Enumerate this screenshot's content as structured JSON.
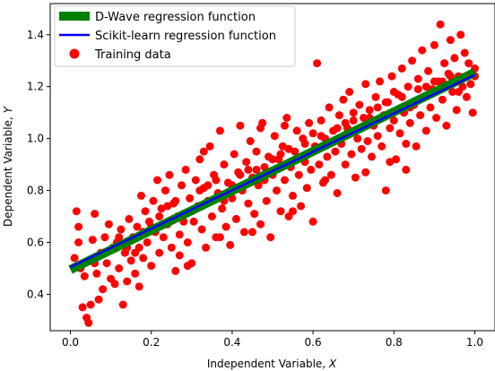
{
  "chart_data": {
    "type": "scatter",
    "title": "",
    "xlabel_prefix": "Independent Variable, ",
    "xlabel_var": "X",
    "ylabel_prefix": "Dependent Variable, ",
    "ylabel_var": "Y",
    "xlim": [
      -0.05,
      1.05
    ],
    "ylim": [
      0.26,
      1.52
    ],
    "x_ticks": [
      0.0,
      0.2,
      0.4,
      0.6,
      0.8,
      1.0
    ],
    "x_tick_labels": [
      "0.0",
      "0.2",
      "0.4",
      "0.6",
      "0.8",
      "1.0"
    ],
    "y_ticks": [
      0.4,
      0.6,
      0.8,
      1.0,
      1.2,
      1.4
    ],
    "y_tick_labels": [
      "0.4",
      "0.6",
      "0.8",
      "1.0",
      "1.2",
      "1.4"
    ],
    "grid": false,
    "legend_position": "top-left",
    "series": [
      {
        "name": "D-Wave regression function",
        "kind": "line",
        "color": "#008000",
        "x": [
          0.0,
          1.0
        ],
        "y": [
          0.495,
          1.255
        ]
      },
      {
        "name": "Scikit-learn regression function",
        "kind": "line",
        "color": "#0000ff",
        "x": [
          0.0,
          1.0
        ],
        "y": [
          0.505,
          1.245
        ]
      },
      {
        "name": "Training data",
        "kind": "scatter",
        "color": "#ff0000",
        "points": [
          [
            0.01,
            0.54
          ],
          [
            0.015,
            0.72
          ],
          [
            0.02,
            0.66
          ],
          [
            0.025,
            0.5
          ],
          [
            0.03,
            0.35
          ],
          [
            0.035,
            0.47
          ],
          [
            0.04,
            0.31
          ],
          [
            0.045,
            0.29
          ],
          [
            0.05,
            0.36
          ],
          [
            0.055,
            0.61
          ],
          [
            0.06,
            0.71
          ],
          [
            0.065,
            0.48
          ],
          [
            0.07,
            0.38
          ],
          [
            0.075,
            0.56
          ],
          [
            0.08,
            0.42
          ],
          [
            0.085,
            0.62
          ],
          [
            0.09,
            0.52
          ],
          [
            0.095,
            0.67
          ],
          [
            0.1,
            0.46
          ],
          [
            0.105,
            0.58
          ],
          [
            0.11,
            0.44
          ],
          [
            0.115,
            0.6
          ],
          [
            0.12,
            0.5
          ],
          [
            0.125,
            0.65
          ],
          [
            0.13,
            0.36
          ],
          [
            0.135,
            0.56
          ],
          [
            0.14,
            0.45
          ],
          [
            0.145,
            0.69
          ],
          [
            0.15,
            0.53
          ],
          [
            0.155,
            0.62
          ],
          [
            0.16,
            0.48
          ],
          [
            0.165,
            0.66
          ],
          [
            0.17,
            0.58
          ],
          [
            0.175,
            0.78
          ],
          [
            0.18,
            0.54
          ],
          [
            0.185,
            0.72
          ],
          [
            0.19,
            0.6
          ],
          [
            0.195,
            0.68
          ],
          [
            0.2,
            0.51
          ],
          [
            0.205,
            0.76
          ],
          [
            0.21,
            0.64
          ],
          [
            0.215,
            0.84
          ],
          [
            0.22,
            0.56
          ],
          [
            0.225,
            0.73
          ],
          [
            0.23,
            0.62
          ],
          [
            0.235,
            0.8
          ],
          [
            0.24,
            0.67
          ],
          [
            0.245,
            0.86
          ],
          [
            0.25,
            0.58
          ],
          [
            0.255,
            0.75
          ],
          [
            0.26,
            0.49
          ],
          [
            0.265,
            0.7
          ],
          [
            0.27,
            0.63
          ],
          [
            0.275,
            0.82
          ],
          [
            0.28,
            0.71
          ],
          [
            0.285,
            0.88
          ],
          [
            0.29,
            0.6
          ],
          [
            0.295,
            0.77
          ],
          [
            0.3,
            0.52
          ],
          [
            0.305,
            0.68
          ],
          [
            0.31,
            0.84
          ],
          [
            0.315,
            0.74
          ],
          [
            0.32,
            0.92
          ],
          [
            0.325,
            0.65
          ],
          [
            0.33,
            0.81
          ],
          [
            0.335,
            0.58
          ],
          [
            0.34,
            0.76
          ],
          [
            0.345,
            0.97
          ],
          [
            0.35,
            0.7
          ],
          [
            0.355,
            0.86
          ],
          [
            0.36,
            0.62
          ],
          [
            0.365,
            0.79
          ],
          [
            0.37,
            1.03
          ],
          [
            0.375,
            0.73
          ],
          [
            0.38,
            0.9
          ],
          [
            0.385,
            0.66
          ],
          [
            0.39,
            0.83
          ],
          [
            0.395,
            0.59
          ],
          [
            0.4,
            0.77
          ],
          [
            0.405,
            0.94
          ],
          [
            0.41,
            0.69
          ],
          [
            0.415,
            0.87
          ],
          [
            0.42,
            1.05
          ],
          [
            0.425,
            0.8
          ],
          [
            0.43,
            0.64
          ],
          [
            0.435,
            0.91
          ],
          [
            0.44,
            0.75
          ],
          [
            0.445,
            0.99
          ],
          [
            0.45,
            0.85
          ],
          [
            0.455,
            0.71
          ],
          [
            0.46,
            0.95
          ],
          [
            0.465,
            0.82
          ],
          [
            0.47,
            0.67
          ],
          [
            0.475,
            1.06
          ],
          [
            0.48,
            0.89
          ],
          [
            0.485,
            0.76
          ],
          [
            0.49,
            0.93
          ],
          [
            0.495,
            0.62
          ],
          [
            0.5,
            0.86
          ],
          [
            0.505,
            1.01
          ],
          [
            0.51,
            0.8
          ],
          [
            0.515,
            0.92
          ],
          [
            0.52,
            0.72
          ],
          [
            0.525,
            0.97
          ],
          [
            0.53,
            0.84
          ],
          [
            0.535,
            1.08
          ],
          [
            0.54,
            0.7
          ],
          [
            0.545,
            0.89
          ],
          [
            0.55,
            0.78
          ],
          [
            0.555,
            0.95
          ],
          [
            0.56,
            1.03
          ],
          [
            0.565,
            0.86
          ],
          [
            0.57,
            0.74
          ],
          [
            0.575,
            1.0
          ],
          [
            0.58,
            0.91
          ],
          [
            0.585,
            0.81
          ],
          [
            0.59,
            1.06
          ],
          [
            0.595,
            0.88
          ],
          [
            0.6,
            0.68
          ],
          [
            0.605,
            0.97
          ],
          [
            0.61,
            1.29
          ],
          [
            0.615,
            0.9
          ],
          [
            0.62,
            1.07
          ],
          [
            0.625,
            0.83
          ],
          [
            0.63,
            1.0
          ],
          [
            0.635,
            0.93
          ],
          [
            0.64,
            1.12
          ],
          [
            0.645,
            0.86
          ],
          [
            0.65,
            1.03
          ],
          [
            0.655,
            0.95
          ],
          [
            0.66,
            0.79
          ],
          [
            0.665,
            1.09
          ],
          [
            0.67,
            0.98
          ],
          [
            0.675,
            1.15
          ],
          [
            0.68,
            0.9
          ],
          [
            0.685,
            1.04
          ],
          [
            0.69,
            1.18
          ],
          [
            0.695,
            0.94
          ],
          [
            0.7,
            1.07
          ],
          [
            0.705,
            0.85
          ],
          [
            0.71,
            1.0
          ],
          [
            0.715,
            1.13
          ],
          [
            0.72,
            0.96
          ],
          [
            0.725,
            1.08
          ],
          [
            0.73,
            1.21
          ],
          [
            0.735,
            0.99
          ],
          [
            0.74,
            1.11
          ],
          [
            0.745,
            0.93
          ],
          [
            0.75,
            1.05
          ],
          [
            0.755,
            1.16
          ],
          [
            0.76,
            1.01
          ],
          [
            0.765,
            1.22
          ],
          [
            0.77,
            0.97
          ],
          [
            0.775,
            1.09
          ],
          [
            0.78,
            0.8
          ],
          [
            0.785,
            1.14
          ],
          [
            0.79,
            1.04
          ],
          [
            0.795,
            1.24
          ],
          [
            0.8,
            1.07
          ],
          [
            0.805,
            0.92
          ],
          [
            0.81,
            1.17
          ],
          [
            0.815,
            1.02
          ],
          [
            0.82,
            1.27
          ],
          [
            0.825,
            1.1
          ],
          [
            0.83,
            0.88
          ],
          [
            0.835,
            1.2
          ],
          [
            0.84,
            1.06
          ],
          [
            0.845,
            1.3
          ],
          [
            0.85,
            1.13
          ],
          [
            0.855,
            0.97
          ],
          [
            0.86,
            1.23
          ],
          [
            0.865,
            1.09
          ],
          [
            0.87,
            1.34
          ],
          [
            0.875,
            1.16
          ],
          [
            0.88,
            1.03
          ],
          [
            0.885,
            1.26
          ],
          [
            0.89,
            1.12
          ],
          [
            0.895,
            1.19
          ],
          [
            0.9,
            1.36
          ],
          [
            0.905,
            1.08
          ],
          [
            0.91,
            1.22
          ],
          [
            0.915,
            1.44
          ],
          [
            0.92,
            1.15
          ],
          [
            0.925,
            1.29
          ],
          [
            0.93,
            1.05
          ],
          [
            0.935,
            1.25
          ],
          [
            0.94,
            1.38
          ],
          [
            0.945,
            1.18
          ],
          [
            0.95,
            1.31
          ],
          [
            0.955,
            1.11
          ],
          [
            0.96,
            1.24
          ],
          [
            0.965,
            1.4
          ],
          [
            0.97,
            1.2
          ],
          [
            0.975,
            1.33
          ],
          [
            0.98,
            1.16
          ],
          [
            0.985,
            1.29
          ],
          [
            0.99,
            1.21
          ],
          [
            0.995,
            1.1
          ],
          [
            1.0,
            1.27
          ],
          [
            0.02,
            0.6
          ],
          [
            0.08,
            0.56
          ],
          [
            0.14,
            0.58
          ],
          [
            0.18,
            0.64
          ],
          [
            0.22,
            0.7
          ],
          [
            0.26,
            0.76
          ],
          [
            0.3,
            0.72
          ],
          [
            0.34,
            0.82
          ],
          [
            0.38,
            0.76
          ],
          [
            0.42,
            0.86
          ],
          [
            0.46,
            0.88
          ],
          [
            0.5,
            0.92
          ],
          [
            0.54,
            0.96
          ],
          [
            0.58,
            0.98
          ],
          [
            0.62,
            1.01
          ],
          [
            0.66,
            1.04
          ],
          [
            0.7,
            1.1
          ],
          [
            0.74,
            1.08
          ],
          [
            0.78,
            1.14
          ],
          [
            0.82,
            1.16
          ],
          [
            0.86,
            1.19
          ],
          [
            0.9,
            1.22
          ],
          [
            0.94,
            1.24
          ],
          [
            0.98,
            1.24
          ],
          [
            0.06,
            0.52
          ],
          [
            0.12,
            0.62
          ],
          [
            0.16,
            0.56
          ],
          [
            0.2,
            0.66
          ],
          [
            0.24,
            0.74
          ],
          [
            0.28,
            0.68
          ],
          [
            0.32,
            0.8
          ],
          [
            0.36,
            0.84
          ],
          [
            0.4,
            0.82
          ],
          [
            0.44,
            0.88
          ],
          [
            0.48,
            0.84
          ],
          [
            0.52,
            0.94
          ],
          [
            0.56,
            0.92
          ],
          [
            0.6,
            1.02
          ],
          [
            0.64,
            0.98
          ],
          [
            0.68,
            1.06
          ],
          [
            0.72,
            1.04
          ],
          [
            0.76,
            1.12
          ],
          [
            0.8,
            1.18
          ],
          [
            0.84,
            1.12
          ],
          [
            0.88,
            1.2
          ],
          [
            0.92,
            1.22
          ],
          [
            0.96,
            1.18
          ],
          [
            1.0,
            1.24
          ],
          [
            0.73,
            0.87
          ],
          [
            0.83,
            0.98
          ],
          [
            0.29,
            0.51
          ],
          [
            0.17,
            0.43
          ],
          [
            0.27,
            0.55
          ],
          [
            0.45,
            0.64
          ],
          [
            0.55,
            0.72
          ],
          [
            0.37,
            0.62
          ],
          [
            0.63,
            0.84
          ],
          [
            0.79,
            0.91
          ],
          [
            0.33,
            0.95
          ],
          [
            0.47,
            1.04
          ],
          [
            0.53,
            1.05
          ]
        ]
      }
    ]
  }
}
